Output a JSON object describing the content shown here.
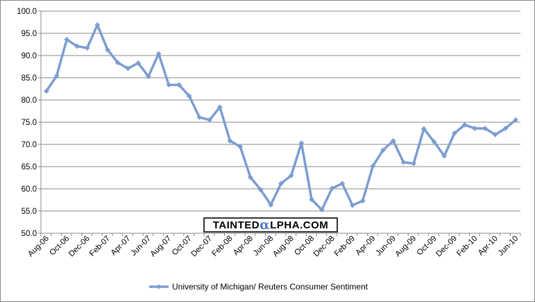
{
  "chart_data": {
    "type": "line",
    "title": "",
    "xlabel": "",
    "ylabel": "",
    "ylim": [
      50,
      100
    ],
    "yticks": [
      "100.0",
      "95.0",
      "90.0",
      "85.0",
      "80.0",
      "75.0",
      "70.0",
      "65.0",
      "60.0",
      "55.0",
      "50.0"
    ],
    "x_tick_labels": [
      "Aug-06",
      "Oct-06",
      "Dec-06",
      "Feb-07",
      "Apr-07",
      "Jun-07",
      "Aug-07",
      "Oct-07",
      "Dec-07",
      "Feb-08",
      "Apr-08",
      "Jun-08",
      "Aug-08",
      "Oct-08",
      "Dec-08",
      "Feb-09",
      "Apr-09",
      "Jun-09",
      "Aug-09",
      "Oct-09",
      "Dec-09",
      "Feb-10",
      "Apr-10",
      "Jun-10"
    ],
    "grid": true,
    "legend_position": "bottom",
    "series": [
      {
        "name": "University of Michigan/ Reuters Consumer Sentiment",
        "color": "#7b9dd0",
        "x": [
          "Aug-06",
          "Sep-06",
          "Oct-06",
          "Nov-06",
          "Dec-06",
          "Jan-07",
          "Feb-07",
          "Mar-07",
          "Apr-07",
          "May-07",
          "Jun-07",
          "Jul-07",
          "Aug-07",
          "Sep-07",
          "Oct-07",
          "Nov-07",
          "Dec-07",
          "Jan-08",
          "Feb-08",
          "Mar-08",
          "Apr-08",
          "May-08",
          "Jun-08",
          "Jul-08",
          "Aug-08",
          "Sep-08",
          "Oct-08",
          "Nov-08",
          "Dec-08",
          "Jan-09",
          "Feb-09",
          "Mar-09",
          "Apr-09",
          "May-09",
          "Jun-09",
          "Jul-09",
          "Aug-09",
          "Sep-09",
          "Oct-09",
          "Nov-09",
          "Dec-09",
          "Jan-10",
          "Feb-10",
          "Mar-10",
          "Apr-10",
          "May-10",
          "Jun-10"
        ],
        "values": [
          82.0,
          85.4,
          93.6,
          92.1,
          91.7,
          96.9,
          91.3,
          88.4,
          87.1,
          88.3,
          85.3,
          90.4,
          83.4,
          83.4,
          80.9,
          76.1,
          75.5,
          78.4,
          70.8,
          69.5,
          62.6,
          59.8,
          56.4,
          61.2,
          63.0,
          70.3,
          57.6,
          55.3,
          60.1,
          61.2,
          56.3,
          57.3,
          65.1,
          68.7,
          70.8,
          66.0,
          65.7,
          73.5,
          70.6,
          67.4,
          72.5,
          74.4,
          73.6,
          73.6,
          72.2,
          73.6,
          75.5
        ]
      }
    ]
  },
  "watermark": {
    "text_before": "TAINTED",
    "text_alpha": "α",
    "text_after": "LPHA.COM"
  }
}
